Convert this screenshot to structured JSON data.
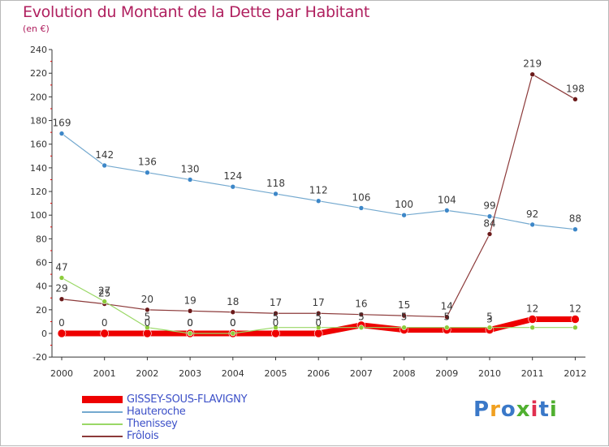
{
  "title": "Evolution du Montant de la Dette par Habitant",
  "subtitle": "(en €)",
  "colors": {
    "title": "#b0205f",
    "axis": "#333333",
    "tick_red": "#e00000",
    "legend_text": "#3c50c8"
  },
  "brand": {
    "name": "Proxiti",
    "letters": [
      "P",
      "r",
      "o",
      "x",
      "i",
      "t",
      "i"
    ],
    "letter_colors": [
      "#3a78c8",
      "#f0a020",
      "#3a78c8",
      "#50b030",
      "#e03050",
      "#3a78c8",
      "#50b030"
    ]
  },
  "chart_data": {
    "type": "line",
    "title": "Evolution du Montant de la Dette par Habitant",
    "subtitle": "(en €)",
    "xlabel": "",
    "ylabel": "",
    "ylim": [
      -20,
      240
    ],
    "yticks": [
      -20,
      0,
      20,
      40,
      60,
      80,
      100,
      120,
      140,
      160,
      180,
      200,
      220,
      240
    ],
    "categories": [
      "2000",
      "2001",
      "2002",
      "2003",
      "2004",
      "2005",
      "2006",
      "2007",
      "2008",
      "2009",
      "2010",
      "2011",
      "2012"
    ],
    "grid": false,
    "legend_position": "bottom-left",
    "series": [
      {
        "name": "GISSEY-SOUS-FLAVIGNY",
        "values": [
          0,
          0,
          0,
          0,
          0,
          0,
          0,
          7,
          3,
          3,
          3,
          12,
          12
        ],
        "labels": [
          "0",
          "0",
          "0",
          "0",
          "0",
          "0",
          "0",
          "",
          "",
          "",
          "3",
          "12",
          "12"
        ],
        "color": "#ee0000",
        "marker": "#ee0000",
        "width": 7
      },
      {
        "name": "Hauteroche",
        "values": [
          169,
          142,
          136,
          130,
          124,
          118,
          112,
          106,
          100,
          104,
          99,
          92,
          88
        ],
        "labels": [
          "169",
          "142",
          "136",
          "130",
          "124",
          "118",
          "112",
          "106",
          "100",
          "104",
          "99",
          "92",
          "88"
        ],
        "color": "#74a9cf",
        "marker": "#3d87c8",
        "width": 1.2
      },
      {
        "name": "Thenissey",
        "values": [
          47,
          27,
          5,
          0,
          0,
          5,
          5,
          5,
          5,
          5,
          5,
          5,
          5
        ],
        "labels": [
          "47",
          "27",
          "5",
          "0",
          "0",
          "5",
          "5",
          "5",
          "5",
          "5",
          "5",
          "",
          ""
        ],
        "color": "#9ad866",
        "marker": "#8ccc3c",
        "width": 1.2
      },
      {
        "name": "Frôlois",
        "values": [
          29,
          25,
          20,
          19,
          18,
          17,
          17,
          16,
          15,
          14,
          84,
          219,
          198
        ],
        "labels": [
          "29",
          "25",
          "20",
          "19",
          "18",
          "17",
          "17",
          "16",
          "15",
          "14",
          "84",
          "219",
          "198"
        ],
        "color": "#8c3a3a",
        "marker": "#6b1a1a",
        "width": 1.2
      }
    ]
  }
}
